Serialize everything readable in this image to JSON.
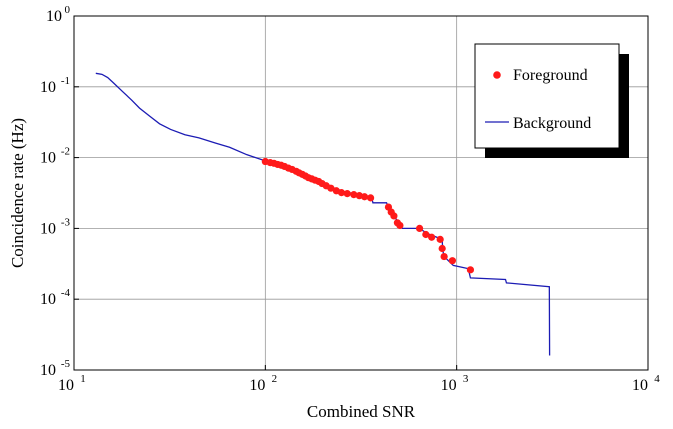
{
  "chart_data": {
    "type": "scatter",
    "title": "",
    "xlabel": "Combined SNR",
    "ylabel": "Coincidence rate (Hz)",
    "x_scale": "log",
    "y_scale": "log",
    "xlim": [
      10,
      10000
    ],
    "ylim": [
      1e-05,
      1
    ],
    "grid": true,
    "legend_position": "top-right",
    "x_ticks": [
      {
        "base": "10",
        "exp": "1",
        "value": 10
      },
      {
        "base": "10",
        "exp": "2",
        "value": 100
      },
      {
        "base": "10",
        "exp": "3",
        "value": 1000
      },
      {
        "base": "10",
        "exp": "4",
        "value": 10000
      }
    ],
    "y_ticks": [
      {
        "base": "10",
        "exp": "0",
        "value": 1
      },
      {
        "base": "10",
        "exp": "-1",
        "value": 0.1
      },
      {
        "base": "10",
        "exp": "-2",
        "value": 0.01
      },
      {
        "base": "10",
        "exp": "-3",
        "value": 0.001
      },
      {
        "base": "10",
        "exp": "-4",
        "value": 0.0001
      },
      {
        "base": "10",
        "exp": "-5",
        "value": 1e-05
      }
    ],
    "series": [
      {
        "name": "Foreground",
        "kind": "scatter",
        "color": "#ff1a1a",
        "points": [
          [
            100,
            0.0088
          ],
          [
            106,
            0.0085
          ],
          [
            111,
            0.0083
          ],
          [
            116,
            0.008
          ],
          [
            121,
            0.0078
          ],
          [
            126,
            0.0075
          ],
          [
            132,
            0.0071
          ],
          [
            138,
            0.0068
          ],
          [
            145,
            0.0064
          ],
          [
            150,
            0.0061
          ],
          [
            156,
            0.0058
          ],
          [
            162,
            0.0055
          ],
          [
            168,
            0.0052
          ],
          [
            175,
            0.005
          ],
          [
            182,
            0.0048
          ],
          [
            190,
            0.0046
          ],
          [
            198,
            0.0043
          ],
          [
            208,
            0.004
          ],
          [
            220,
            0.0037
          ],
          [
            235,
            0.0034
          ],
          [
            250,
            0.0032
          ],
          [
            268,
            0.0031
          ],
          [
            290,
            0.003
          ],
          [
            310,
            0.0029
          ],
          [
            330,
            0.0028
          ],
          [
            355,
            0.0027
          ],
          [
            440,
            0.002
          ],
          [
            455,
            0.0017
          ],
          [
            470,
            0.0015
          ],
          [
            490,
            0.0012
          ],
          [
            505,
            0.0011
          ],
          [
            640,
            0.001
          ],
          [
            690,
            0.00082
          ],
          [
            740,
            0.00075
          ],
          [
            820,
            0.0007
          ],
          [
            840,
            0.00052
          ],
          [
            860,
            0.0004
          ],
          [
            950,
            0.00035
          ],
          [
            1180,
            0.00026
          ]
        ]
      },
      {
        "name": "Background",
        "kind": "line",
        "color": "#1c1cb4",
        "points": [
          [
            13,
            0.155
          ],
          [
            14,
            0.15
          ],
          [
            15,
            0.135
          ],
          [
            16,
            0.115
          ],
          [
            18,
            0.085
          ],
          [
            20,
            0.065
          ],
          [
            22,
            0.05
          ],
          [
            25,
            0.038
          ],
          [
            28,
            0.03
          ],
          [
            32,
            0.025
          ],
          [
            38,
            0.021
          ],
          [
            45,
            0.019
          ],
          [
            55,
            0.016
          ],
          [
            65,
            0.014
          ],
          [
            80,
            0.011
          ],
          [
            100,
            0.009
          ],
          [
            130,
            0.0072
          ],
          [
            170,
            0.005
          ],
          [
            210,
            0.004
          ],
          [
            260,
            0.0033
          ],
          [
            360,
            0.0027
          ],
          [
            365,
            0.0023
          ],
          [
            430,
            0.0023
          ],
          [
            440,
            0.002
          ],
          [
            460,
            0.0016
          ],
          [
            500,
            0.0012
          ],
          [
            520,
            0.001
          ],
          [
            640,
            0.001
          ],
          [
            700,
            0.00085
          ],
          [
            840,
            0.0007
          ],
          [
            845,
            0.0005
          ],
          [
            860,
            0.0004
          ],
          [
            960,
            0.0003
          ],
          [
            1150,
            0.00027
          ],
          [
            1180,
            0.0002
          ],
          [
            1800,
            0.00019
          ],
          [
            1820,
            0.00017
          ],
          [
            3050,
            0.00015
          ],
          [
            3060,
            1.6e-05
          ]
        ]
      }
    ]
  }
}
